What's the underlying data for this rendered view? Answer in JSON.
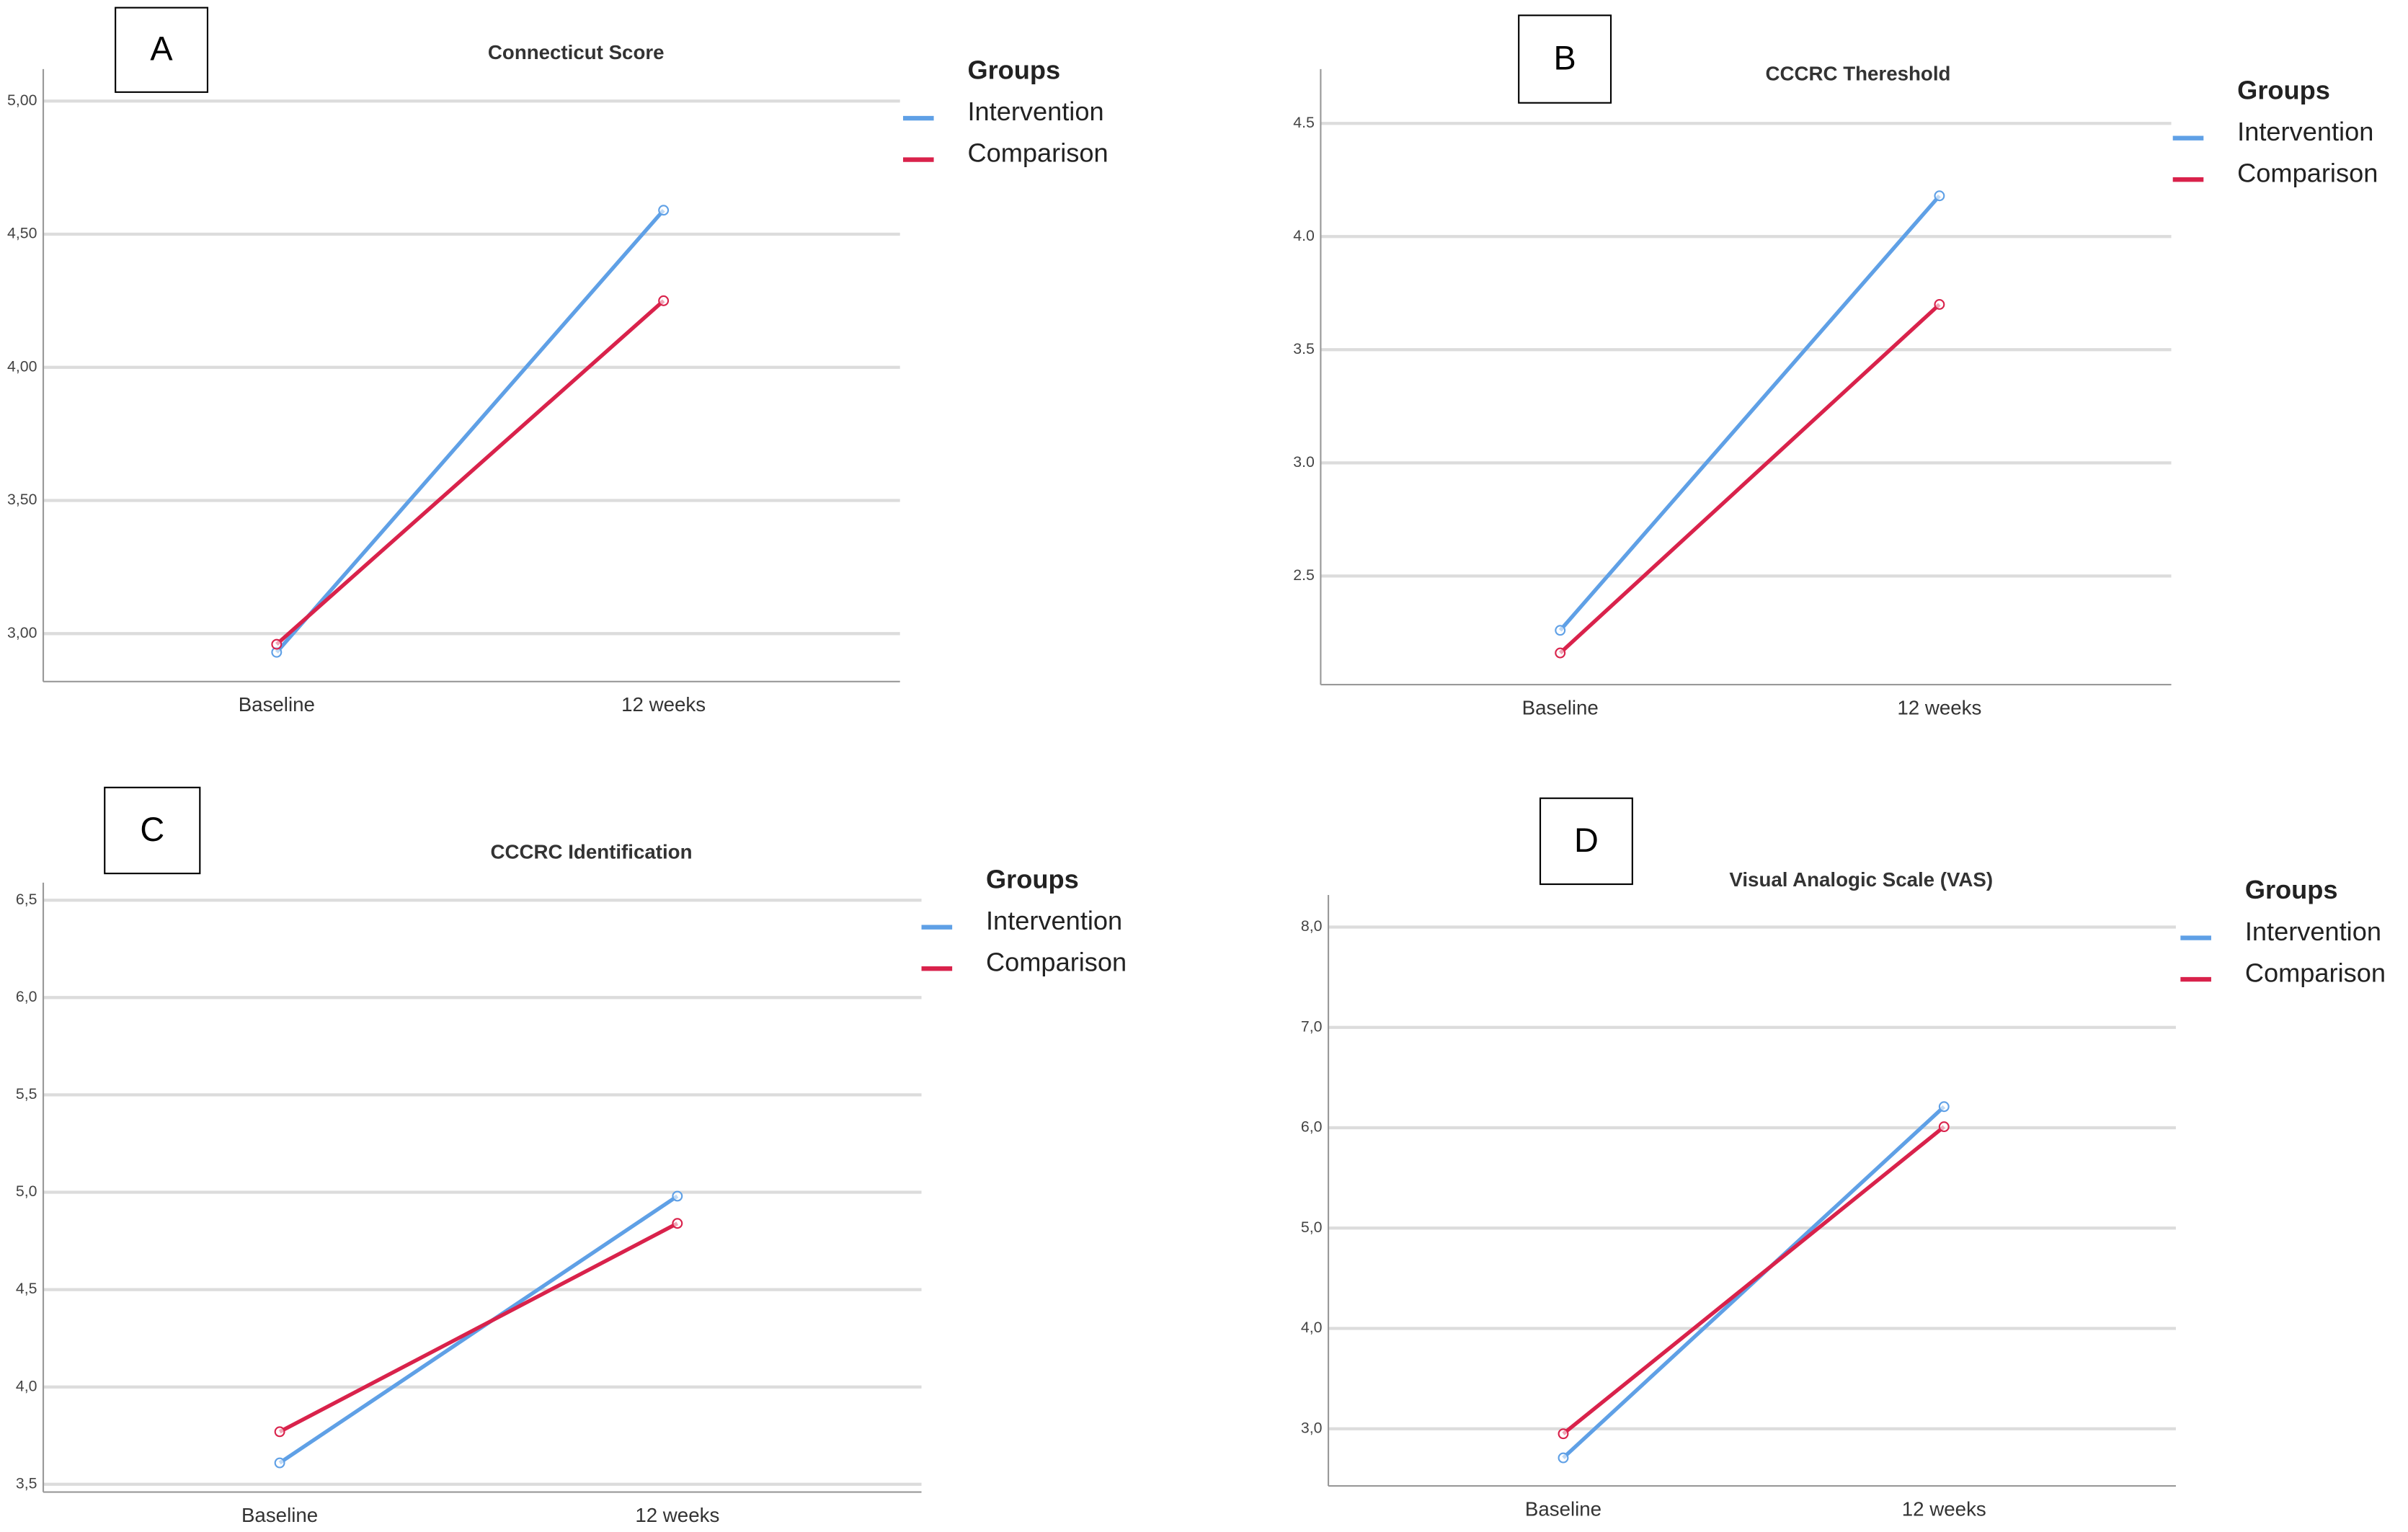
{
  "chart_data": [
    {
      "type": "line",
      "panel": "A",
      "title": "Connecticut Score",
      "legend_title": "Groups",
      "categories": [
        "Baseline",
        "12 weeks"
      ],
      "series": [
        {
          "name": "Intervention",
          "color": "#5fa0e6",
          "values": [
            2.93,
            4.59
          ]
        },
        {
          "name": "Comparison",
          "color": "#d9224b",
          "values": [
            2.96,
            4.25
          ]
        }
      ],
      "ylim": [
        2.82,
        5.12
      ],
      "yticks": [
        {
          "value": 3,
          "label": "3,00"
        },
        {
          "value": 3.5,
          "label": "3,50"
        },
        {
          "value": 4,
          "label": "4,00"
        },
        {
          "value": 4.5,
          "label": "4,50"
        },
        {
          "value": 5,
          "label": "5,00"
        }
      ],
      "grid": true
    },
    {
      "type": "line",
      "panel": "B",
      "title": "CCCRC Thereshold",
      "legend_title": "Groups",
      "categories": [
        "Baseline",
        "12 weeks"
      ],
      "series": [
        {
          "name": "Intervention",
          "color": "#5fa0e6",
          "values": [
            2.26,
            4.18
          ]
        },
        {
          "name": "Comparison",
          "color": "#d9224b",
          "values": [
            2.16,
            3.7
          ]
        }
      ],
      "ylim": [
        2.02,
        4.74
      ],
      "yticks": [
        2.5,
        {
          "value": 3,
          "label": "3.0"
        },
        3.5,
        {
          "value": 4,
          "label": "4.0"
        },
        4.5
      ],
      "grid": true
    },
    {
      "type": "line",
      "panel": "C",
      "title": "CCCRC Identification",
      "legend_title": "Groups",
      "categories": [
        "Baseline",
        "12 weeks"
      ],
      "series": [
        {
          "name": "Intervention",
          "color": "#5fa0e6",
          "values": [
            3.61,
            4.98
          ]
        },
        {
          "name": "Comparison",
          "color": "#d9224b",
          "values": [
            3.77,
            4.84
          ]
        }
      ],
      "ylim": [
        3.46,
        6.59
      ],
      "yticks": [
        {
          "value": 3.5,
          "label": "3,5"
        },
        {
          "value": 4,
          "label": "4,0"
        },
        {
          "value": 4.5,
          "label": "4,5"
        },
        {
          "value": 5,
          "label": "5,0"
        },
        {
          "value": 5.5,
          "label": "5,5"
        },
        {
          "value": 6,
          "label": "6,0"
        },
        {
          "value": 6.5,
          "label": "6,5"
        }
      ],
      "grid": true
    },
    {
      "type": "line",
      "panel": "D",
      "title": "Visual Analogic Scale (VAS)",
      "legend_title": "Groups",
      "categories": [
        "Baseline",
        "12 weeks"
      ],
      "series": [
        {
          "name": "Intervention",
          "color": "#5fa0e6",
          "values": [
            2.71,
            6.21
          ]
        },
        {
          "name": "Comparison",
          "color": "#d9224b",
          "values": [
            2.95,
            6.01
          ]
        }
      ],
      "ylim": [
        2.43,
        8.32
      ],
      "yticks": [
        {
          "value": 3,
          "label": "3,0"
        },
        {
          "value": 4,
          "label": "4,0"
        },
        {
          "value": 5,
          "label": "5,0"
        },
        {
          "value": 6,
          "label": "6,0"
        },
        {
          "value": 7,
          "label": "7,0"
        },
        {
          "value": 8,
          "label": "8,0"
        }
      ],
      "grid": true
    }
  ]
}
